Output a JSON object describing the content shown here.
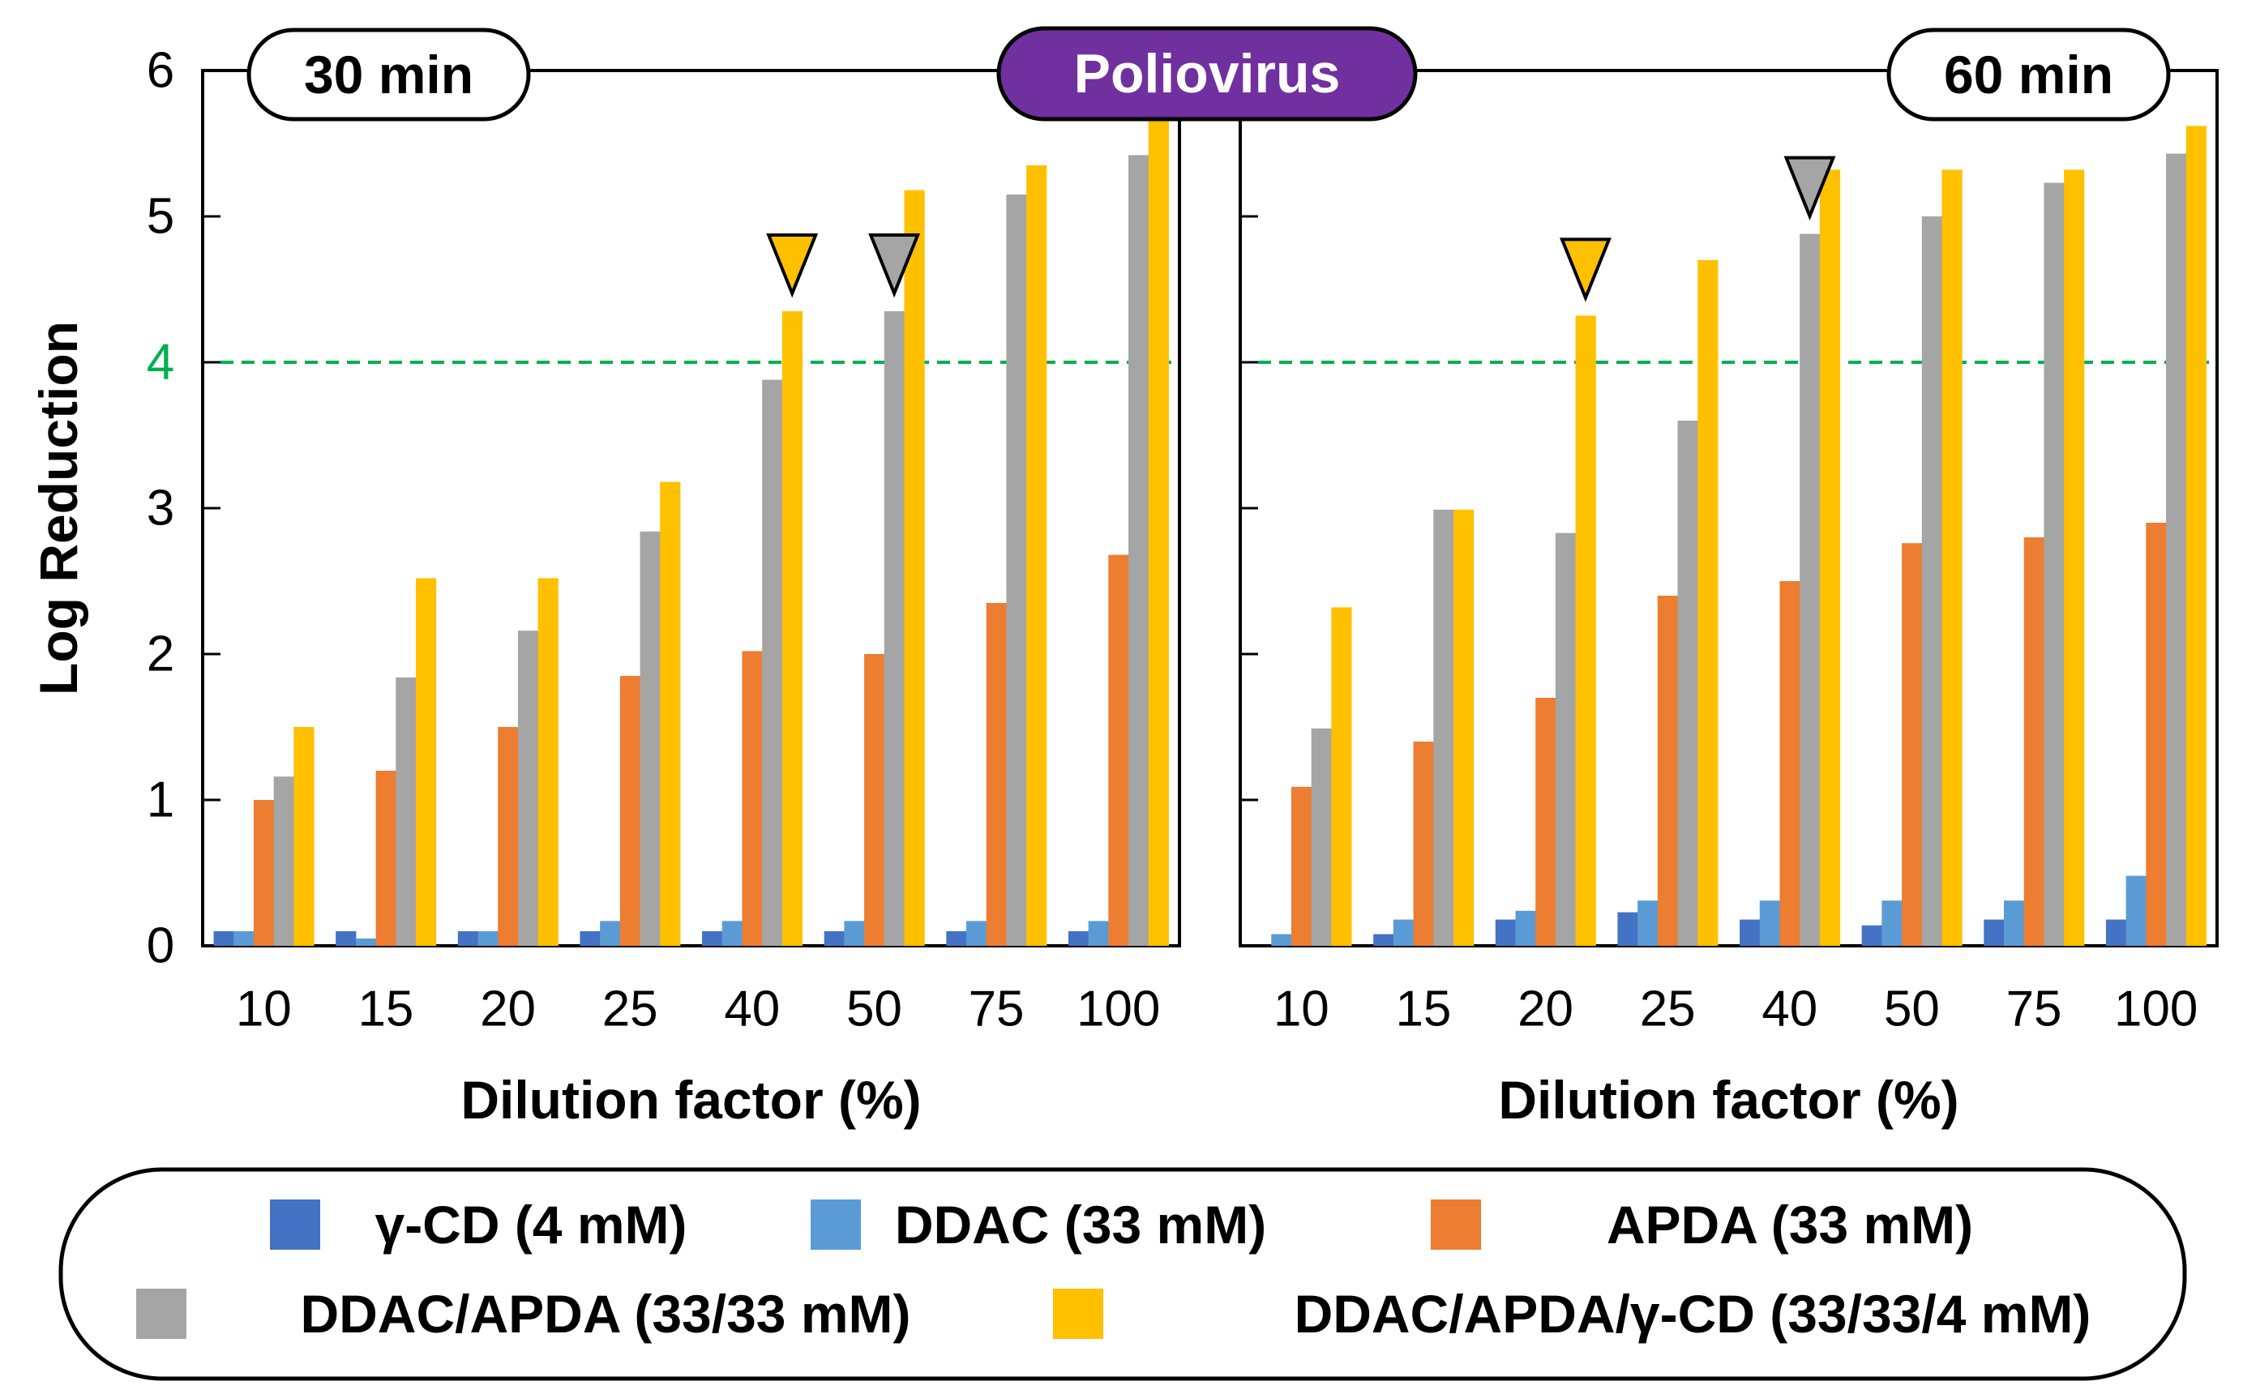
{
  "chart_data": [
    {
      "type": "bar",
      "time_label": "30 min",
      "xlabel": "Dilution factor (%)",
      "ylabel": "Log Reduction",
      "ylim": [
        0,
        6
      ],
      "yticks": [
        "0",
        "1",
        "2",
        "3",
        "4",
        "5",
        "6"
      ],
      "threshold": 4,
      "categories": [
        "10",
        "15",
        "20",
        "25",
        "40",
        "50",
        "75",
        "100"
      ],
      "series": [
        {
          "name": "γ-CD (4 mM)",
          "values": [
            0.1,
            0.1,
            0.1,
            0.1,
            0.1,
            0.1,
            0.1,
            0.1
          ]
        },
        {
          "name": "DDAC (33 mM)",
          "values": [
            0.1,
            0.05,
            0.1,
            0.17,
            0.17,
            0.17,
            0.17,
            0.17
          ]
        },
        {
          "name": "APDA (33 mM)",
          "values": [
            1.0,
            1.2,
            1.5,
            1.85,
            2.02,
            2.0,
            2.35,
            2.68
          ]
        },
        {
          "name": "DDAC/APDA (33/33 mM)",
          "values": [
            1.16,
            1.84,
            2.16,
            2.84,
            3.88,
            4.35,
            5.15,
            5.42
          ]
        },
        {
          "name": "DDAC/APDA/γ-CD (33/33/4 mM)",
          "values": [
            1.5,
            2.52,
            2.52,
            3.18,
            4.35,
            5.18,
            5.35,
            5.75
          ]
        }
      ],
      "markers": [
        {
          "series": "DDAC/APDA/γ-CD (33/33/4 mM)",
          "category": "40"
        },
        {
          "series": "DDAC/APDA (33/33 mM)",
          "category": "50"
        }
      ]
    },
    {
      "type": "bar",
      "time_label": "60 min",
      "xlabel": "Dilution factor (%)",
      "ylabel": "",
      "ylim": [
        0,
        6
      ],
      "threshold": 4,
      "categories": [
        "10",
        "15",
        "20",
        "25",
        "40",
        "50",
        "75",
        "100"
      ],
      "series": [
        {
          "name": "γ-CD (4 mM)",
          "values": [
            0.0,
            0.08,
            0.18,
            0.23,
            0.18,
            0.14,
            0.18,
            0.18
          ]
        },
        {
          "name": "DDAC (33 mM)",
          "values": [
            0.08,
            0.18,
            0.24,
            0.31,
            0.31,
            0.31,
            0.31,
            0.48
          ]
        },
        {
          "name": "APDA (33 mM)",
          "values": [
            1.09,
            1.4,
            1.7,
            2.4,
            2.5,
            2.76,
            2.8,
            2.9
          ]
        },
        {
          "name": "DDAC/APDA (33/33 mM)",
          "values": [
            1.49,
            2.99,
            2.83,
            3.6,
            4.88,
            5.0,
            5.23,
            5.43
          ]
        },
        {
          "name": "DDAC/APDA/γ-CD (33/33/4 mM)",
          "values": [
            2.32,
            2.99,
            4.32,
            4.7,
            5.32,
            5.32,
            5.32,
            5.62
          ]
        }
      ],
      "markers": [
        {
          "series": "DDAC/APDA/γ-CD (33/33/4 mM)",
          "category": "20"
        },
        {
          "series": "DDAC/APDA (33/33 mM)",
          "category": "40"
        }
      ]
    }
  ],
  "title": "Poliovirus",
  "threshold_label": "4",
  "colors": {
    "γ-CD (4 mM)": "#4472C4",
    "DDAC (33 mM)": "#5B9BD5",
    "APDA (33 mM)": "#ED7D31",
    "DDAC/APDA (33/33 mM)": "#A5A5A5",
    "DDAC/APDA/γ-CD (33/33/4 mM)": "#FFC000",
    "title_bg": "#7030A0",
    "threshold_line": "#00B050"
  },
  "legend": {
    "placement": "bottom",
    "items": [
      "γ-CD (4 mM)",
      "DDAC (33 mM)",
      "APDA (33 mM)",
      "DDAC/APDA (33/33 mM)",
      "DDAC/APDA/γ-CD (33/33/4 mM)"
    ]
  }
}
